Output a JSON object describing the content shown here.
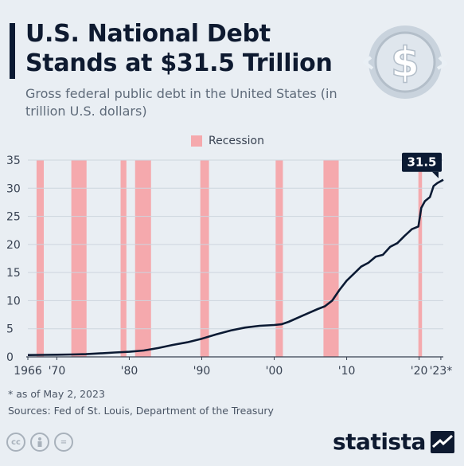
{
  "header": {
    "title": "U.S. National Debt Stands at $31.5 Trillion",
    "subtitle": "Gross federal public debt in the United States (in trillion U.S. dollars)"
  },
  "legend": {
    "recession_label": "Recession"
  },
  "colors": {
    "line": "#0b1a33",
    "recession": "#f5a9ad",
    "grid": "#cdd5de",
    "callout": "#0b1a33"
  },
  "icons": {
    "header_icon": "dollar-coin-icon",
    "brand_icon": "statista-logo-icon"
  },
  "chart_data": {
    "type": "line",
    "title": "U.S. National Debt Stands at $31.5 Trillion",
    "ylabel": "",
    "xlabel": "",
    "ylim": [
      0,
      35
    ],
    "xlim": [
      1966,
      2023.34
    ],
    "grid": true,
    "legend_position": "top-center",
    "y_ticks": [
      "0",
      "5",
      "10",
      "15",
      "20",
      "25",
      "30",
      "35"
    ],
    "x_ticks": [
      {
        "value": 1966,
        "label": "1966"
      },
      {
        "value": 1970,
        "label": "'70"
      },
      {
        "value": 1980,
        "label": "'80"
      },
      {
        "value": 1990,
        "label": "'90"
      },
      {
        "value": 2000,
        "label": "'00"
      },
      {
        "value": 2010,
        "label": "'10"
      },
      {
        "value": 2020,
        "label": "'20"
      },
      {
        "value": 2023,
        "label": "'23*"
      }
    ],
    "recessions": [
      [
        1967.2,
        1968.2
      ],
      [
        1972.0,
        1974.1
      ],
      [
        1978.8,
        1979.6
      ],
      [
        1980.8,
        1983.0
      ],
      [
        1989.8,
        1991.0
      ],
      [
        2000.2,
        2001.2
      ],
      [
        2006.8,
        2008.9
      ],
      [
        2019.9,
        2020.4
      ]
    ],
    "series": [
      {
        "x": [
          1966,
          1968,
          1970,
          1972,
          1974,
          1976,
          1978,
          1980,
          1982,
          1984,
          1986,
          1988,
          1990,
          1992,
          1994,
          1996,
          1998,
          2000,
          2001,
          2002,
          2004,
          2006,
          2007,
          2008,
          2009,
          2010,
          2011,
          2012,
          2013,
          2014,
          2015,
          2016,
          2017,
          2018,
          2019,
          2019.9,
          2020.3,
          2020.8,
          2021.5,
          2022,
          2022.5,
          2023.34
        ],
        "values": [
          0.32,
          0.35,
          0.38,
          0.43,
          0.48,
          0.62,
          0.78,
          0.91,
          1.14,
          1.57,
          2.13,
          2.6,
          3.23,
          4.0,
          4.69,
          5.22,
          5.53,
          5.67,
          5.8,
          6.23,
          7.38,
          8.5,
          9.0,
          10.0,
          11.9,
          13.56,
          14.8,
          16.06,
          16.74,
          17.82,
          18.15,
          19.57,
          20.24,
          21.52,
          22.72,
          23.2,
          26.5,
          27.7,
          28.43,
          30.4,
          30.9,
          31.5
        ]
      }
    ],
    "callout": {
      "x": 2023.34,
      "value": "31.5"
    }
  },
  "footer": {
    "note": "* as of May 2, 2023",
    "sources": "Sources: Fed of St. Louis, Department of the Treasury",
    "brand": "statista"
  }
}
